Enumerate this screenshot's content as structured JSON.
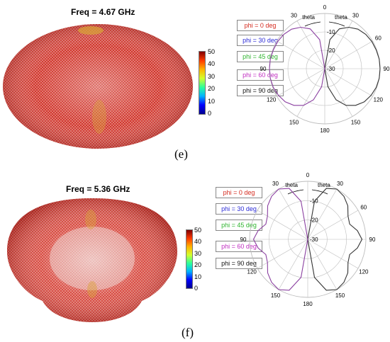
{
  "colors": {
    "red_pattern": "#d42a1e",
    "dark_red": "#9b1512",
    "orange_band": "#d9a23a",
    "mesh_white": "#f2e6e4",
    "curve_dark": "#333333",
    "curve_purple": "#8a3fa0",
    "grid": "#bdbdbd",
    "cursor_arrow": "#000000"
  },
  "panel_e": {
    "title": "Freq = 4.67 GHz",
    "letter": "(e)",
    "colorbar_ticks": [
      "50",
      "40",
      "30",
      "20",
      "10",
      "0"
    ]
  },
  "panel_f": {
    "title": "Freq = 5.36 GHz",
    "letter": "(f)",
    "colorbar_ticks": [
      "50",
      "40",
      "30",
      "20",
      "10",
      "0"
    ]
  },
  "chart_data": [
    {
      "type": "polar-line",
      "panel": "e",
      "angle_ticks": [
        "0",
        "30",
        "30",
        "60",
        "90",
        "90",
        "120",
        "120",
        "150",
        "150",
        "180"
      ],
      "radial_ticks": [
        "-10",
        "-20",
        "-30"
      ],
      "angle_labels": [
        "theta",
        "theta"
      ],
      "legend": [
        {
          "label": "phi = 0  deg",
          "color": "#d42a1e"
        },
        {
          "label": "phi = 30 deg",
          "color": "#2b2bd6"
        },
        {
          "label": "phi = 45 deg",
          "color": "#2fb52f"
        },
        {
          "label": "phi = 60 deg",
          "color": "#c02cc0"
        },
        {
          "label": "phi = 90 deg",
          "color": "#111111"
        }
      ],
      "rlim": [
        -30,
        0
      ],
      "theta_deg": [
        0,
        10,
        20,
        30,
        40,
        50,
        60,
        70,
        80,
        90,
        100,
        110,
        120,
        130,
        140,
        150,
        160,
        170,
        180
      ],
      "gain_db": [
        -30,
        -14,
        -7,
        -4,
        -2,
        -1,
        -0.5,
        -0.3,
        0,
        0,
        0,
        -0.3,
        -1,
        -2,
        -4,
        -7,
        -12,
        -20,
        -30
      ]
    },
    {
      "type": "polar-line",
      "panel": "f",
      "angle_ticks": [
        "0",
        "30",
        "30",
        "60",
        "90",
        "90",
        "120",
        "120",
        "150",
        "150",
        "180"
      ],
      "radial_ticks": [
        "-10",
        "-20",
        "-30"
      ],
      "angle_labels": [
        "theta",
        "theta"
      ],
      "legend": [
        {
          "label": "phi = 0  deg",
          "color": "#d42a1e"
        },
        {
          "label": "phi = 30 deg",
          "color": "#2b2bd6"
        },
        {
          "label": "phi = 45 deg",
          "color": "#2fb52f"
        },
        {
          "label": "phi = 60 deg",
          "color": "#c02cc0"
        },
        {
          "label": "phi = 90 deg",
          "color": "#111111"
        }
      ],
      "rlim": [
        -30,
        0
      ],
      "theta_deg": [
        0,
        10,
        20,
        30,
        40,
        50,
        60,
        70,
        80,
        90,
        100,
        110,
        120,
        130,
        140,
        150,
        160,
        170,
        180
      ],
      "gain_db": [
        -30,
        -10,
        -2,
        0,
        -1,
        -3,
        -6,
        -7,
        -4,
        -2,
        -4,
        -7,
        -6,
        -3,
        -1,
        0,
        -2,
        -10,
        -30
      ]
    }
  ]
}
